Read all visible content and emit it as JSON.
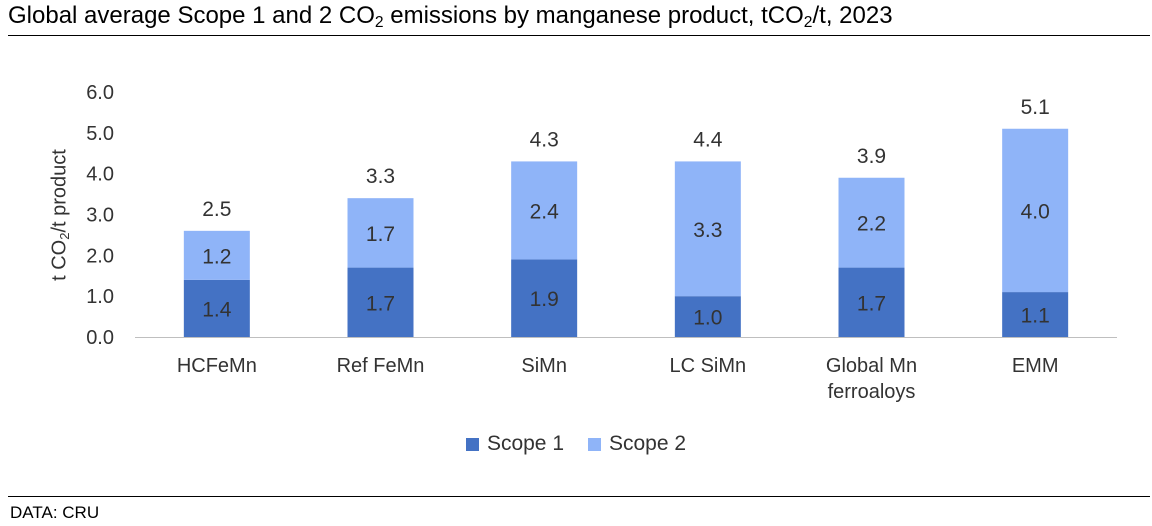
{
  "title": {
    "pre": "Global average Scope 1 and 2 CO",
    "sub": "2",
    "mid": " emissions by manganese product, tCO",
    "sub2": "2",
    "post": "/t, 2023"
  },
  "source": "DATA: CRU",
  "ylabel": {
    "pre": "t CO",
    "sub": "2",
    "post": "/t product"
  },
  "colors": {
    "scope1": "#4472C4",
    "scope2": "#8FB4F8"
  },
  "chart_data": {
    "type": "bar",
    "stacked": true,
    "categories": [
      [
        "HCFeMn"
      ],
      [
        "Ref FeMn"
      ],
      [
        "SiMn"
      ],
      [
        "LC SiMn"
      ],
      [
        "Global Mn",
        "ferroaloys"
      ],
      [
        "EMM"
      ]
    ],
    "series": [
      {
        "name": "Scope 1",
        "values": [
          1.4,
          1.7,
          1.9,
          1.0,
          1.7,
          1.1
        ],
        "color": "#4472C4"
      },
      {
        "name": "Scope 2",
        "values": [
          1.2,
          1.7,
          2.4,
          3.3,
          2.2,
          4.0
        ],
        "color": "#8FB4F8"
      }
    ],
    "totals": [
      2.5,
      3.3,
      4.3,
      4.4,
      3.9,
      5.1
    ],
    "yticks": [
      "0.0",
      "1.0",
      "2.0",
      "3.0",
      "4.0",
      "5.0",
      "6.0"
    ],
    "ylim": [
      0,
      6
    ],
    "ylabel": "t CO2/t product",
    "legend_position": "bottom",
    "grid": false
  }
}
